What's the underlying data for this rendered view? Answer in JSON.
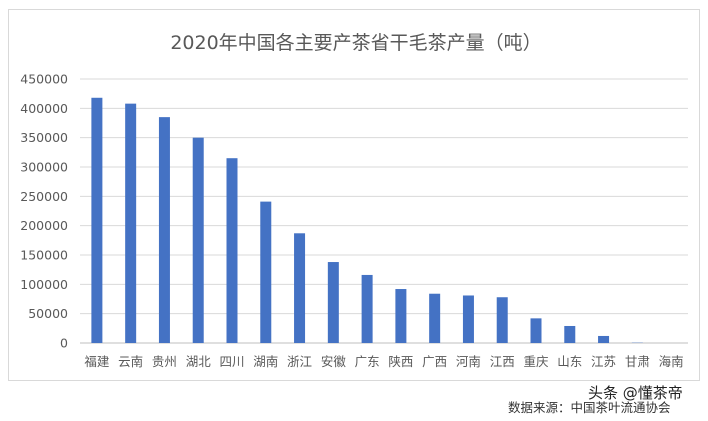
{
  "chart_data": {
    "type": "bar",
    "title": "2020年中国各主要产茶省干毛茶产量（吨）",
    "categories": [
      "福建",
      "云南",
      "贵州",
      "湖北",
      "四川",
      "湖南",
      "浙江",
      "安徽",
      "广东",
      "陕西",
      "广西",
      "河南",
      "江西",
      "重庆",
      "山东",
      "江苏",
      "甘肃",
      "海南"
    ],
    "values": [
      418000,
      408000,
      385000,
      350000,
      315000,
      241000,
      187000,
      138000,
      116000,
      92000,
      84000,
      81000,
      78000,
      42000,
      29000,
      12000,
      500,
      0
    ],
    "yticks": [
      "450000",
      "400000",
      "350000",
      "300000",
      "250000",
      "200000",
      "150000",
      "100000",
      "50000",
      "0"
    ],
    "ylim": [
      0,
      450000
    ],
    "grid": true,
    "legend": "none",
    "bar_color": "#4472c4"
  },
  "source_text": "数据来源：中国茶叶流通协会",
  "watermark_text": "头条 @懂茶帝"
}
